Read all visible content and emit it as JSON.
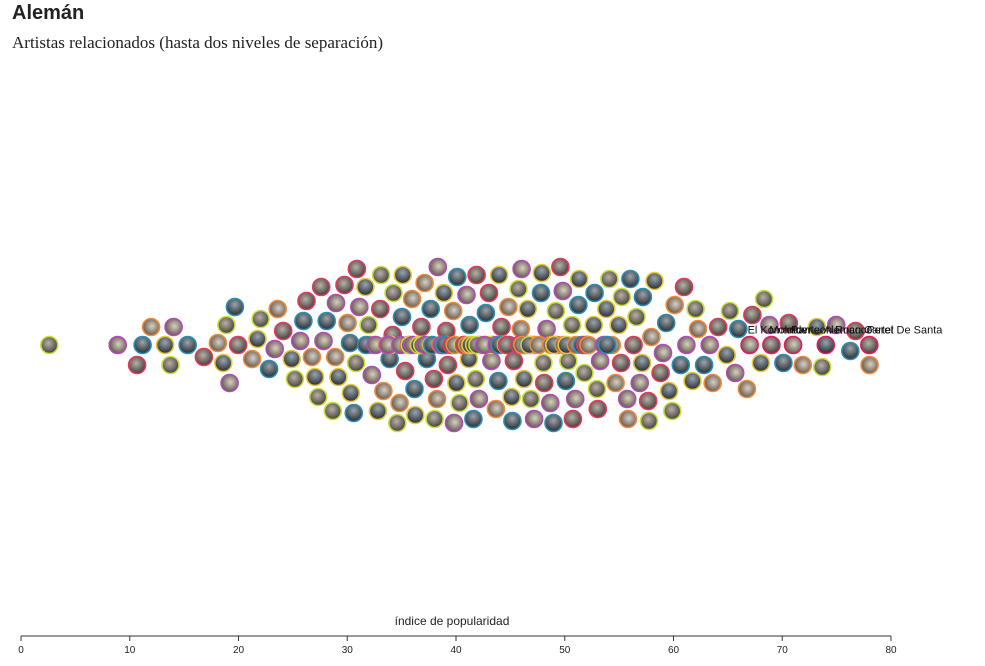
{
  "header": {
    "title": "Alemán",
    "subtitle": "Artistas relacionados (hasta dos niveles de separación)"
  },
  "chart_data": {
    "type": "scatter",
    "layout": "beeswarm",
    "xlabel": "índice de popularidad",
    "xlim": [
      0,
      80
    ],
    "xticks": [
      0,
      10,
      20,
      30,
      40,
      50,
      60,
      70,
      80
    ],
    "labeled_artists": [
      {
        "name": "Molotov",
        "popularity": 69
      },
      {
        "name": "Panteon Rococo",
        "popularity": 71
      },
      {
        "name": "Aleman Cartel De Santa",
        "popularity": 74
      },
      {
        "name": "Peret",
        "popularity": 78
      },
      {
        "name": "El Komander",
        "popularity": 67
      }
    ],
    "other_artist_popularity": [
      3,
      9,
      11,
      11,
      12,
      13,
      14,
      14,
      15,
      17,
      18,
      19,
      19,
      19,
      20,
      20,
      21,
      22,
      22,
      23,
      23,
      24,
      24,
      25,
      25,
      26,
      26,
      26,
      27,
      27,
      27,
      28,
      28,
      28,
      29,
      29,
      29,
      29,
      30,
      30,
      30,
      30,
      31,
      31,
      31,
      31,
      32,
      32,
      32,
      32,
      32,
      33,
      33,
      33,
      33,
      33,
      34,
      34,
      34,
      34,
      34,
      34,
      35,
      35,
      35,
      35,
      35,
      35,
      36,
      36,
      36,
      36,
      36,
      36,
      37,
      37,
      37,
      37,
      37,
      37,
      38,
      38,
      38,
      38,
      38,
      38,
      38,
      39,
      39,
      39,
      39,
      39,
      39,
      39,
      40,
      40,
      40,
      40,
      40,
      40,
      40,
      41,
      41,
      41,
      41,
      41,
      41,
      41,
      42,
      42,
      42,
      42,
      42,
      42,
      42,
      43,
      43,
      43,
      43,
      43,
      43,
      43,
      44,
      44,
      44,
      44,
      44,
      44,
      44,
      45,
      45,
      45,
      45,
      45,
      45,
      45,
      46,
      46,
      46,
      46,
      46,
      46,
      46,
      47,
      47,
      47,
      47,
      47,
      47,
      47,
      48,
      48,
      48,
      48,
      48,
      48,
      49,
      49,
      49,
      49,
      49,
      49,
      50,
      50,
      50,
      50,
      50,
      50,
      51,
      51,
      51,
      51,
      51,
      51,
      52,
      52,
      52,
      52,
      52,
      53,
      53,
      53,
      53,
      53,
      54,
      54,
      54,
      54,
      54,
      55,
      55,
      55,
      55,
      56,
      56,
      56,
      56,
      57,
      57,
      57,
      57,
      58,
      58,
      58,
      58,
      59,
      59,
      59,
      60,
      60,
      60,
      61,
      61,
      61,
      62,
      62,
      62,
      63,
      63,
      64,
      64,
      65,
      65,
      66,
      66,
      67,
      67,
      68,
      68,
      69,
      70,
      71,
      72,
      73,
      74,
      75,
      76,
      77,
      78
    ],
    "colors": {
      "ring_palette": [
        "#c8e03a",
        "#b24bb8",
        "#2a8fb5",
        "#e03a5c",
        "#f08a3a",
        "#e6c93a"
      ],
      "highlight_ring": "#e8195a",
      "axis": "#333333"
    }
  }
}
